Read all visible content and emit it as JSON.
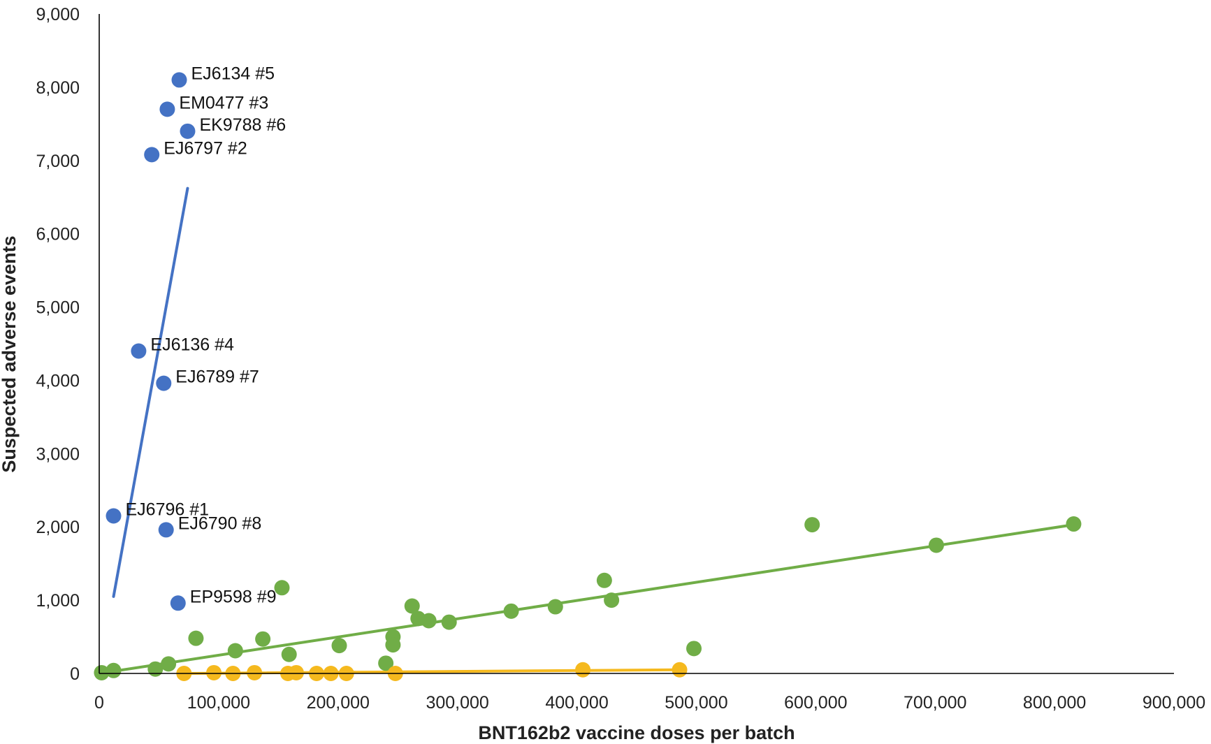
{
  "chart_data": {
    "type": "scatter",
    "title": "",
    "xlabel": "BNT162b2 vaccine doses per batch",
    "ylabel": "Suspected adverse events",
    "xlim": [
      0,
      900000
    ],
    "ylim": [
      0,
      9000
    ],
    "xticks": [
      0,
      100000,
      200000,
      300000,
      400000,
      500000,
      600000,
      700000,
      800000,
      900000
    ],
    "yticks": [
      0,
      1000,
      2000,
      3000,
      4000,
      5000,
      6000,
      7000,
      8000,
      9000
    ],
    "xtick_labels": [
      "0",
      "100,000",
      "200,000",
      "300,000",
      "400,000",
      "500,000",
      "600,000",
      "700,000",
      "800,000",
      "900,000"
    ],
    "ytick_labels": [
      "0",
      "1,000",
      "2,000",
      "3,000",
      "4,000",
      "5,000",
      "6,000",
      "7,000",
      "8,000",
      "9,000"
    ],
    "grid": false,
    "legend": "none",
    "series": [
      {
        "color": "#4472C4",
        "points": [
          {
            "x": 67000,
            "y": 8100,
            "label": "EJ6134 #5"
          },
          {
            "x": 57000,
            "y": 7700,
            "label": "EM0477 #3"
          },
          {
            "x": 74000,
            "y": 7400,
            "label": "EK9788 #6"
          },
          {
            "x": 44000,
            "y": 7080,
            "label": "EJ6797 #2"
          },
          {
            "x": 33000,
            "y": 4400,
            "label": "EJ6136 #4"
          },
          {
            "x": 54000,
            "y": 3960,
            "label": "EJ6789 #7"
          },
          {
            "x": 12000,
            "y": 2150,
            "label": "EJ6796 #1"
          },
          {
            "x": 56000,
            "y": 1960,
            "label": "EJ6790 #8"
          },
          {
            "x": 66000,
            "y": 960,
            "label": "EP9598 #9"
          }
        ],
        "trendline": [
          [
            12000,
            1050
          ],
          [
            74000,
            6620
          ]
        ]
      },
      {
        "color": "#70AD47",
        "points": [
          {
            "x": 2000,
            "y": 10
          },
          {
            "x": 12000,
            "y": 40
          },
          {
            "x": 47000,
            "y": 60
          },
          {
            "x": 58000,
            "y": 130
          },
          {
            "x": 81000,
            "y": 480
          },
          {
            "x": 114000,
            "y": 310
          },
          {
            "x": 137000,
            "y": 470
          },
          {
            "x": 153000,
            "y": 1170
          },
          {
            "x": 159000,
            "y": 260
          },
          {
            "x": 201000,
            "y": 380
          },
          {
            "x": 240000,
            "y": 140
          },
          {
            "x": 246000,
            "y": 500
          },
          {
            "x": 246000,
            "y": 390
          },
          {
            "x": 262000,
            "y": 920
          },
          {
            "x": 267000,
            "y": 750
          },
          {
            "x": 276000,
            "y": 720
          },
          {
            "x": 293000,
            "y": 700
          },
          {
            "x": 345000,
            "y": 850
          },
          {
            "x": 382000,
            "y": 910
          },
          {
            "x": 423000,
            "y": 1270
          },
          {
            "x": 429000,
            "y": 1000
          },
          {
            "x": 498000,
            "y": 340
          },
          {
            "x": 597000,
            "y": 2030
          },
          {
            "x": 701000,
            "y": 1750
          },
          {
            "x": 816000,
            "y": 2040
          }
        ],
        "trendline": [
          [
            0,
            0
          ],
          [
            816000,
            2030
          ]
        ]
      },
      {
        "color": "#F5B91E",
        "points": [
          {
            "x": 71000,
            "y": 0
          },
          {
            "x": 96000,
            "y": 10
          },
          {
            "x": 112000,
            "y": 0
          },
          {
            "x": 130000,
            "y": 10
          },
          {
            "x": 158000,
            "y": 0
          },
          {
            "x": 165000,
            "y": 10
          },
          {
            "x": 182000,
            "y": 0
          },
          {
            "x": 194000,
            "y": 0
          },
          {
            "x": 207000,
            "y": 0
          },
          {
            "x": 248000,
            "y": 0
          },
          {
            "x": 405000,
            "y": 50
          },
          {
            "x": 486000,
            "y": 50
          }
        ],
        "trendline": [
          [
            71000,
            0
          ],
          [
            486000,
            50
          ]
        ]
      }
    ]
  }
}
